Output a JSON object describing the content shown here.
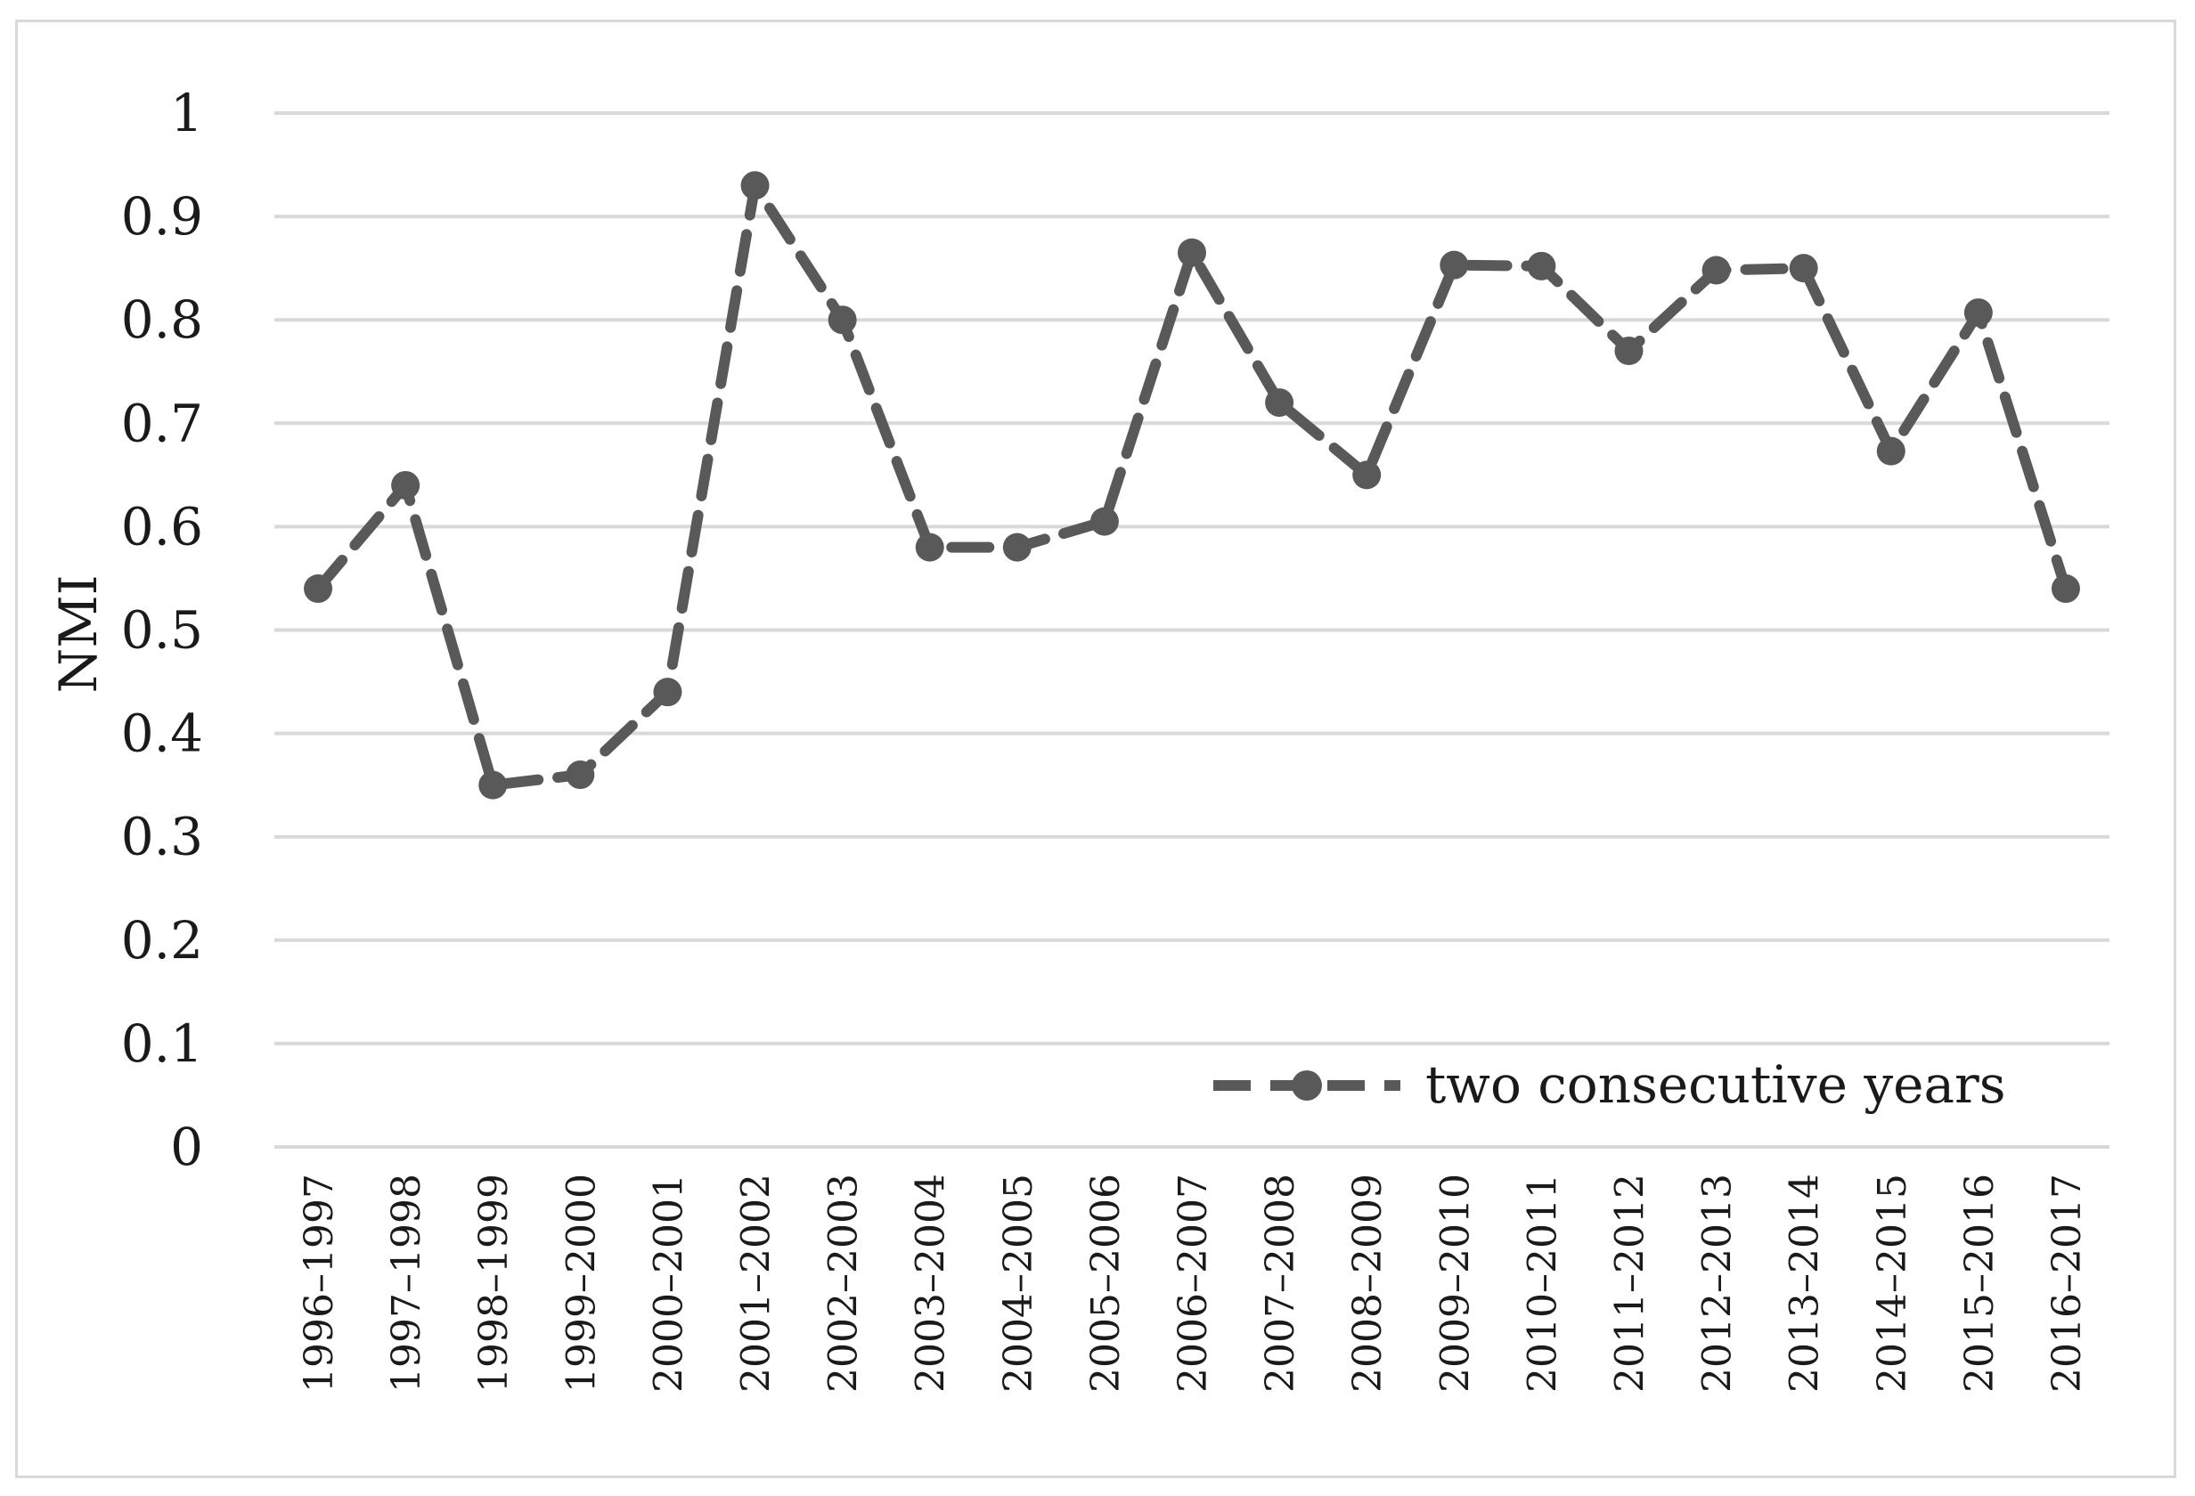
{
  "chart_data": {
    "type": "line",
    "categories": [
      "1996–1997",
      "1997–1998",
      "1998–1999",
      "1999–2000",
      "2000–2001",
      "2001–2002",
      "2002–2003",
      "2003–2004",
      "2004–2005",
      "2005–2006",
      "2006–2007",
      "2007–2008",
      "2008–2009",
      "2009–2010",
      "2010–2011",
      "2011–2012",
      "2012–2013",
      "2013–2014",
      "2014–2015",
      "2015–2016",
      "2016–2017"
    ],
    "series": [
      {
        "name": "two consecutive years",
        "values": [
          0.54,
          0.64,
          0.35,
          0.36,
          0.44,
          0.93,
          0.8,
          0.58,
          0.58,
          0.605,
          0.865,
          0.72,
          0.65,
          0.853,
          0.852,
          0.77,
          0.848,
          0.85,
          0.673,
          0.807,
          0.54
        ],
        "color": "#595959",
        "line_style": "dashed",
        "marker": "circle"
      }
    ],
    "xlabel": "",
    "ylabel": "NMI",
    "ylim": [
      0,
      1
    ],
    "yticks": [
      "0",
      "0.1",
      "0.2",
      "0.3",
      "0.4",
      "0.5",
      "0.6",
      "0.7",
      "0.8",
      "0.9",
      "1"
    ],
    "grid": "horizontal",
    "legend_position": "bottom-right",
    "grid_color": "#d9d9d9"
  }
}
